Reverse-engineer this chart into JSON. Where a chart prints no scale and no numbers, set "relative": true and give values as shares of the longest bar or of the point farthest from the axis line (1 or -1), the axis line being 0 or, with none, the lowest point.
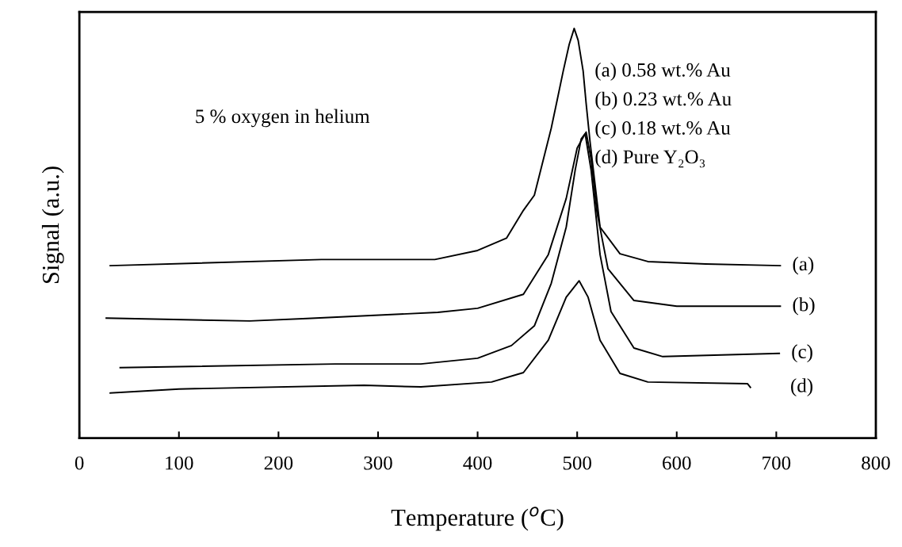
{
  "chart_data": {
    "type": "line",
    "relative": true,
    "xlabel": "Temperature ($^{o}$C)",
    "ylabel": "Signal (a.u.)",
    "xlim": [
      0,
      800
    ],
    "xticks": [
      0,
      100,
      200,
      300,
      400,
      500,
      600,
      700,
      800
    ],
    "tick_labels": "x",
    "grid": false,
    "legend": false,
    "marker": "none",
    "line_style": "solid",
    "annotations": [
      "5 % oxygen in helium",
      "(a) 0.58 wt.% Au",
      "(b) 0.23 wt.% Au",
      "(c) 0.18 wt.% Au",
      "(d) Pure Y₂O₃"
    ],
    "series": [
      {
        "name": "(a)",
        "color": "#000000",
        "x": [
          31,
          243,
          357,
          400,
          429,
          446,
          457,
          474,
          480,
          486,
          492,
          497,
          501,
          506,
          509,
          513,
          523,
          543,
          571,
          629,
          704
        ],
        "values": [
          0.421,
          0.436,
          0.436,
          0.458,
          0.488,
          0.556,
          0.593,
          0.757,
          0.826,
          0.896,
          0.961,
          1,
          0.971,
          0.896,
          0.817,
          0.722,
          0.515,
          0.45,
          0.431,
          0.425,
          0.421
        ]
      },
      {
        "name": "(b)",
        "color": "#000000",
        "x": [
          27,
          171,
          229,
          360,
          400,
          446,
          471,
          489,
          500,
          509,
          514,
          520,
          531,
          557,
          600,
          704
        ],
        "values": [
          0.293,
          0.286,
          0.292,
          0.307,
          0.317,
          0.351,
          0.448,
          0.585,
          0.708,
          0.747,
          0.681,
          0.55,
          0.413,
          0.336,
          0.322,
          0.322
        ]
      },
      {
        "name": "(c)",
        "color": "#000000",
        "x": [
          41,
          257,
          343,
          400,
          434,
          457,
          474,
          489,
          498,
          504,
          508,
          514,
          523,
          534,
          557,
          586,
          703
        ],
        "values": [
          0.172,
          0.181,
          0.181,
          0.195,
          0.226,
          0.274,
          0.378,
          0.515,
          0.654,
          0.73,
          0.743,
          0.654,
          0.448,
          0.309,
          0.22,
          0.199,
          0.207
        ]
      },
      {
        "name": "(d)",
        "color": "#000000",
        "x": [
          31,
          100,
          286,
          343,
          414,
          446,
          471,
          489,
          502,
          511,
          523,
          543,
          571,
          671,
          674
        ],
        "values": [
          0.11,
          0.12,
          0.129,
          0.125,
          0.137,
          0.16,
          0.239,
          0.344,
          0.384,
          0.344,
          0.239,
          0.158,
          0.137,
          0.133,
          0.124
        ]
      }
    ]
  }
}
